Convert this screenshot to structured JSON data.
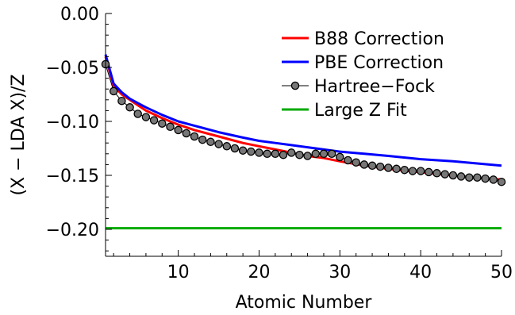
{
  "chart_data": {
    "type": "line",
    "title": "",
    "xlabel": "Atomic Number",
    "ylabel": "(X − LDA X)/Z",
    "xlim": [
      1,
      50
    ],
    "ylim": [
      -0.225,
      0.0
    ],
    "xticks": [
      10,
      20,
      30,
      40,
      50
    ],
    "xtick_labels": [
      "10",
      "20",
      "30",
      "40",
      "50"
    ],
    "yticks": [
      0.0,
      -0.05,
      -0.1,
      -0.15,
      -0.2
    ],
    "ytick_labels": [
      "0.00",
      "−0.05",
      "−0.10",
      "−0.15",
      "−0.20"
    ],
    "grid": false,
    "legend_position": "top-right",
    "series": [
      {
        "name": "B88 Correction",
        "style": "line",
        "color": "#ff0000",
        "x": [
          1,
          2,
          3,
          4,
          5,
          6,
          8,
          10,
          12,
          15,
          18,
          20,
          22,
          24,
          26,
          28,
          30,
          33,
          36,
          40,
          44,
          47,
          50
        ],
        "y": [
          -0.04,
          -0.067,
          -0.075,
          -0.08,
          -0.085,
          -0.09,
          -0.097,
          -0.103,
          -0.108,
          -0.114,
          -0.12,
          -0.123,
          -0.126,
          -0.129,
          -0.132,
          -0.134,
          -0.137,
          -0.141,
          -0.144,
          -0.147,
          -0.15,
          -0.152,
          -0.154
        ]
      },
      {
        "name": "PBE Correction",
        "style": "line",
        "color": "#0000ff",
        "x": [
          1,
          2,
          3,
          4,
          5,
          6,
          8,
          10,
          12,
          15,
          18,
          20,
          22,
          24,
          26,
          28,
          30,
          33,
          36,
          40,
          44,
          47,
          50
        ],
        "y": [
          -0.038,
          -0.065,
          -0.073,
          -0.079,
          -0.083,
          -0.087,
          -0.094,
          -0.1,
          -0.104,
          -0.11,
          -0.115,
          -0.118,
          -0.12,
          -0.122,
          -0.124,
          -0.126,
          -0.128,
          -0.13,
          -0.132,
          -0.135,
          -0.137,
          -0.139,
          -0.141
        ]
      },
      {
        "name": "Hartree−Fock",
        "style": "line-markers",
        "color": "#666666",
        "x": [
          1,
          2,
          3,
          4,
          5,
          6,
          7,
          8,
          9,
          10,
          11,
          12,
          13,
          14,
          15,
          16,
          17,
          18,
          19,
          20,
          21,
          22,
          23,
          24,
          25,
          26,
          27,
          28,
          29,
          30,
          31,
          32,
          33,
          34,
          35,
          36,
          37,
          38,
          39,
          40,
          41,
          42,
          43,
          44,
          45,
          46,
          47,
          48,
          49,
          50
        ],
        "y": [
          -0.047,
          -0.072,
          -0.081,
          -0.087,
          -0.093,
          -0.096,
          -0.099,
          -0.102,
          -0.105,
          -0.108,
          -0.111,
          -0.114,
          -0.117,
          -0.119,
          -0.121,
          -0.123,
          -0.125,
          -0.127,
          -0.128,
          -0.129,
          -0.13,
          -0.13,
          -0.131,
          -0.129,
          -0.131,
          -0.132,
          -0.13,
          -0.13,
          -0.13,
          -0.133,
          -0.136,
          -0.138,
          -0.14,
          -0.141,
          -0.142,
          -0.143,
          -0.144,
          -0.145,
          -0.146,
          -0.146,
          -0.147,
          -0.148,
          -0.149,
          -0.15,
          -0.151,
          -0.152,
          -0.152,
          -0.153,
          -0.154,
          -0.156
        ]
      },
      {
        "name": "Large Z Fit",
        "style": "line",
        "color": "#00aa00",
        "x": [
          1,
          50
        ],
        "y": [
          -0.199,
          -0.199
        ]
      }
    ]
  }
}
